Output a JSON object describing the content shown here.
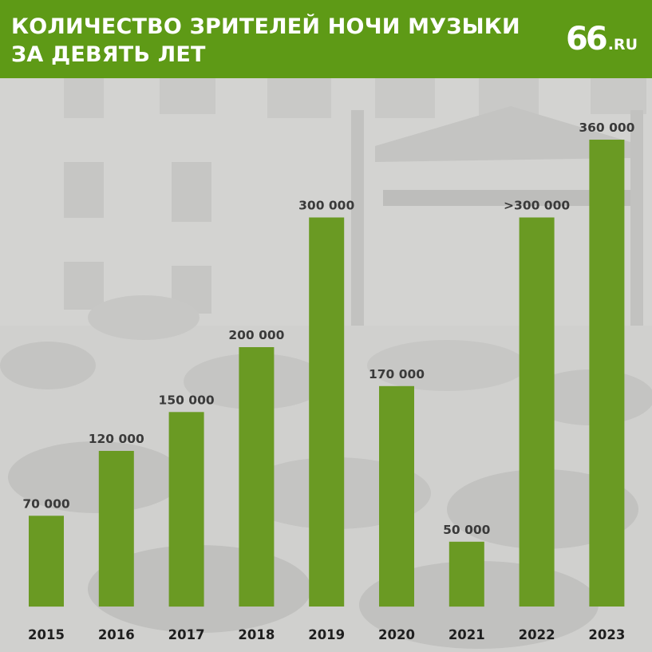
{
  "header": {
    "title_line1": "КОЛИЧЕСТВО ЗРИТЕЛЕЙ НОЧИ МУЗЫКИ",
    "title_line2": "ЗА ДЕВЯТЬ ЛЕТ",
    "logo_number": "66",
    "logo_domain": ".RU"
  },
  "colors": {
    "header": "#5e9a16",
    "bar": "#6a9a23",
    "text": "#ffffff"
  },
  "chart_data": {
    "type": "bar",
    "categories": [
      "2015",
      "2016",
      "2017",
      "2018",
      "2019",
      "2020",
      "2021",
      "2022",
      "2023"
    ],
    "values": [
      70000,
      120000,
      150000,
      200000,
      300000,
      170000,
      50000,
      300000,
      360000
    ],
    "value_labels": [
      "70 000",
      "120 000",
      "150 000",
      "200 000",
      "300 000",
      "170 000",
      "50 000",
      ">300 000",
      "360 000"
    ],
    "title": "КОЛИЧЕСТВО ЗРИТЕЛЕЙ НОЧИ МУЗЫКИ ЗА ДЕВЯТЬ ЛЕТ",
    "xlabel": "",
    "ylabel": "",
    "ylim": [
      0,
      360000
    ],
    "grid": false,
    "legend": "none"
  }
}
